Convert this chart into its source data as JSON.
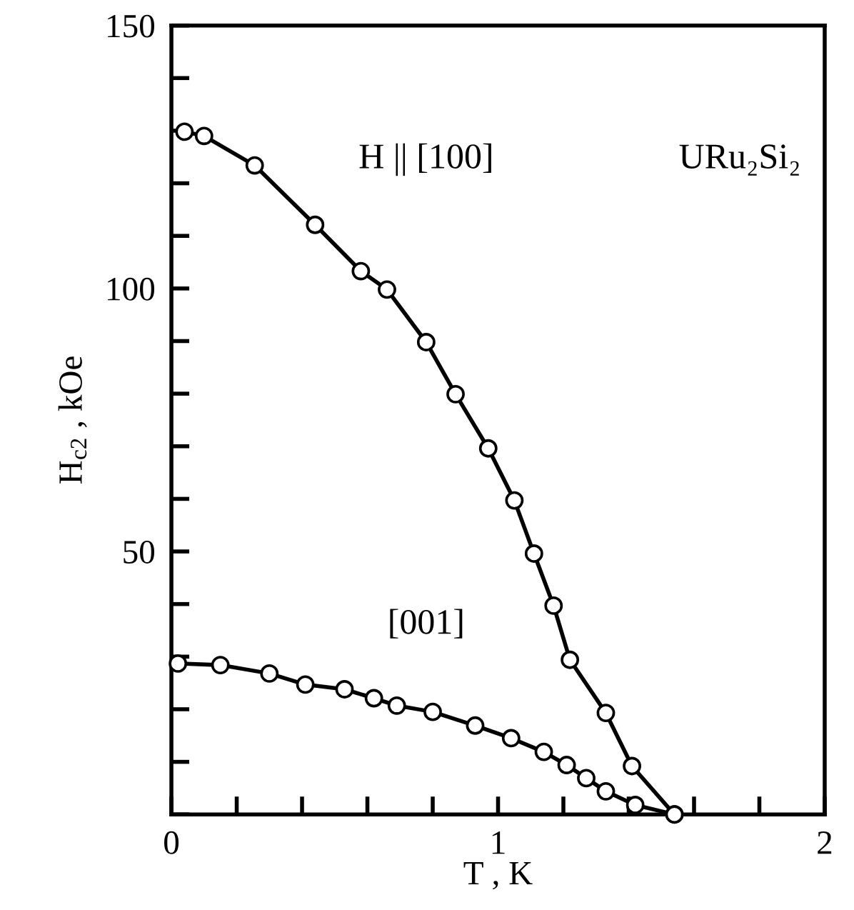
{
  "chart_data": {
    "type": "line",
    "xlabel": "T , K",
    "ylabel": "H$_{c2}$ , kOe",
    "xlim": [
      0,
      2
    ],
    "ylim": [
      0,
      150
    ],
    "xticks": [
      0,
      {
        "value": 0.2,
        "label": null
      },
      {
        "value": 0.4,
        "label": null
      },
      {
        "value": 0.6,
        "label": null
      },
      {
        "value": 0.8,
        "label": null
      },
      1,
      {
        "value": 1.2,
        "label": null
      },
      {
        "value": 1.4,
        "label": null
      },
      {
        "value": 1.6,
        "label": null
      },
      {
        "value": 1.8,
        "label": null
      },
      2
    ],
    "yticks": [
      {
        "value": 0,
        "label": null
      },
      {
        "value": 10,
        "label": null
      },
      {
        "value": 20,
        "label": null
      },
      {
        "value": 30,
        "label": null
      },
      {
        "value": 40,
        "label": null
      },
      50,
      {
        "value": 60,
        "label": null
      },
      {
        "value": 70,
        "label": null
      },
      {
        "value": 80,
        "label": null
      },
      {
        "value": 90,
        "label": null
      },
      100,
      {
        "value": 110,
        "label": null
      },
      {
        "value": 120,
        "label": null
      },
      {
        "value": 130,
        "label": null
      },
      {
        "value": 140,
        "label": null
      },
      150
    ],
    "marker": "circle",
    "line_style": "solid",
    "grid": false,
    "legend": false,
    "series": [
      {
        "color": "#000000",
        "x": [
          0.04,
          0.1,
          0.255,
          0.44,
          0.58,
          0.66,
          0.78,
          0.87,
          0.97,
          1.05,
          1.11,
          1.17,
          1.22,
          1.33,
          1.41,
          1.54
        ],
        "values": [
          129.8,
          129.0,
          123.4,
          112.1,
          103.3,
          99.8,
          89.8,
          79.9,
          69.6,
          59.7,
          49.6,
          39.7,
          29.4,
          19.3,
          9.2,
          0
        ]
      },
      {
        "color": "#000000",
        "x": [
          0.02,
          0.15,
          0.3,
          0.41,
          0.53,
          0.62,
          0.69,
          0.8,
          0.93,
          1.04,
          1.14,
          1.21,
          1.27,
          1.33,
          1.42,
          1.54
        ],
        "values": [
          28.7,
          28.4,
          26.8,
          24.7,
          23.8,
          22.1,
          20.7,
          19.5,
          16.9,
          14.5,
          11.9,
          9.4,
          6.9,
          4.4,
          1.8,
          0
        ]
      }
    ],
    "annotations": [
      "H || [100]",
      "URu₂Si₂",
      "[001]"
    ]
  }
}
